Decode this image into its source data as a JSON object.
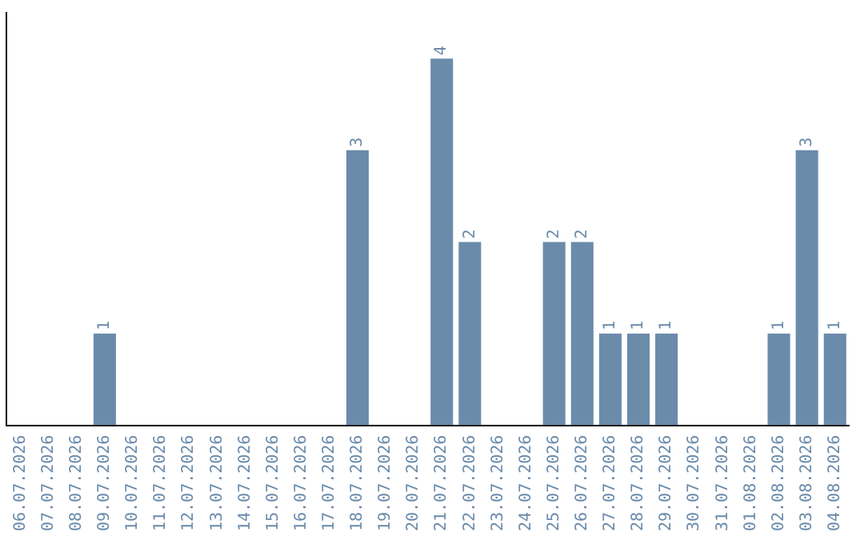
{
  "chart_data": {
    "type": "bar",
    "categories": [
      "06.07.2026",
      "07.07.2026",
      "08.07.2026",
      "09.07.2026",
      "10.07.2026",
      "11.07.2026",
      "12.07.2026",
      "13.07.2026",
      "14.07.2026",
      "15.07.2026",
      "16.07.2026",
      "17.07.2026",
      "18.07.2026",
      "19.07.2026",
      "20.07.2026",
      "21.07.2026",
      "22.07.2026",
      "23.07.2026",
      "24.07.2026",
      "25.07.2026",
      "26.07.2026",
      "27.07.2026",
      "28.07.2026",
      "29.07.2026",
      "30.07.2026",
      "31.07.2026",
      "01.08.2026",
      "02.08.2026",
      "03.08.2026",
      "04.08.2026"
    ],
    "values": [
      0,
      0,
      0,
      1,
      0,
      0,
      0,
      0,
      0,
      0,
      0,
      0,
      3,
      0,
      0,
      4,
      2,
      0,
      0,
      2,
      2,
      1,
      1,
      1,
      0,
      0,
      0,
      1,
      3,
      1
    ],
    "value_labels": [
      null,
      null,
      null,
      "1",
      null,
      null,
      null,
      null,
      null,
      null,
      null,
      null,
      "3",
      null,
      null,
      "4",
      "2",
      null,
      null,
      "2",
      "2",
      "1",
      "1",
      "1",
      null,
      null,
      null,
      "1",
      "3",
      "1"
    ],
    "color": "#6b8bab",
    "tick_labels": "x",
    "grid": false,
    "legend": false
  }
}
